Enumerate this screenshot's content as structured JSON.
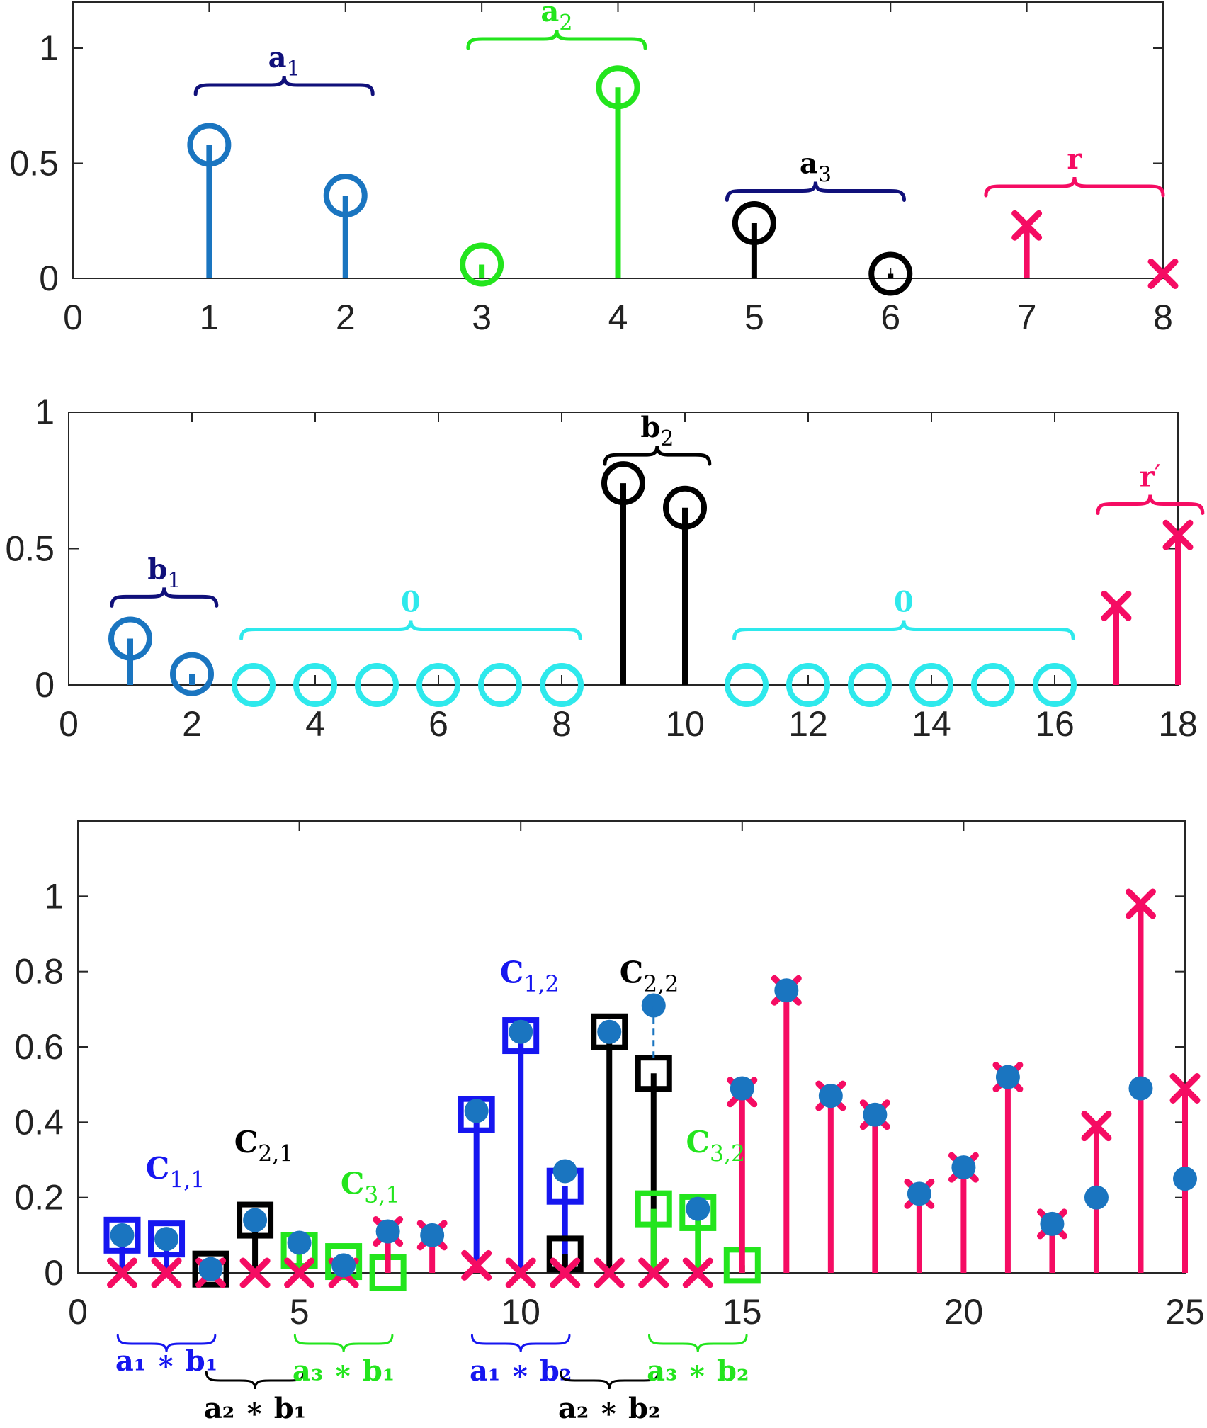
{
  "colors": {
    "blue": "#1a75c0",
    "navy": "#10107a",
    "green": "#23e51d",
    "black": "#000000",
    "magenta": "#f50c63",
    "cyan": "#2ee9ec",
    "brightblue": "#1616f0",
    "axis": "#262626",
    "tick": "#222222"
  },
  "chart_data": [
    {
      "type": "stem",
      "xlim": [
        0,
        8
      ],
      "ylim": [
        0,
        1.2
      ],
      "xticks": [
        "0",
        "1",
        "2",
        "3",
        "4",
        "5",
        "6",
        "7",
        "8"
      ],
      "yticks": [
        "0",
        "0.5",
        "1"
      ],
      "series": [
        {
          "x": [
            1,
            2
          ],
          "y": [
            0.58,
            0.36
          ],
          "marker": "circle",
          "color": "blue"
        },
        {
          "x": [
            3,
            4
          ],
          "y": [
            0.06,
            0.83
          ],
          "marker": "circle",
          "color": "green"
        },
        {
          "x": [
            5,
            6
          ],
          "y": [
            0.24,
            0.02
          ],
          "marker": "circle",
          "color": "black"
        },
        {
          "x": [
            7,
            8
          ],
          "y": [
            0.23,
            0.02
          ],
          "marker": "x",
          "color": "magenta"
        }
      ],
      "braces": [
        {
          "x": [
            0.9,
            2.2
          ],
          "y": 0.8,
          "text": "a",
          "sub": "1",
          "color": "navy"
        },
        {
          "x": [
            2.9,
            4.2
          ],
          "y": 1.0,
          "text": "a",
          "sub": "2",
          "color": "green"
        },
        {
          "x": [
            4.8,
            6.1
          ],
          "y": 0.34,
          "text": "a",
          "sub": "3",
          "color": "navy",
          "textcolor": "black"
        },
        {
          "x": [
            6.7,
            8.0
          ],
          "y": 0.36,
          "text": "r",
          "sub": "",
          "color": "magenta"
        }
      ]
    },
    {
      "type": "stem",
      "xlim": [
        0,
        18
      ],
      "ylim": [
        0,
        1
      ],
      "xticks": [
        "0",
        "2",
        "4",
        "6",
        "8",
        "10",
        "12",
        "14",
        "16",
        "18"
      ],
      "yticks": [
        "0",
        "0.5",
        "1"
      ],
      "series": [
        {
          "x": [
            1,
            2
          ],
          "y": [
            0.17,
            0.04
          ],
          "marker": "circle",
          "color": "blue"
        },
        {
          "x": [
            3,
            4,
            5,
            6,
            7,
            8
          ],
          "y": [
            0,
            0,
            0,
            0,
            0,
            0
          ],
          "marker": "circle",
          "color": "cyan"
        },
        {
          "x": [
            9,
            10
          ],
          "y": [
            0.74,
            0.65
          ],
          "marker": "circle",
          "color": "black"
        },
        {
          "x": [
            11,
            12,
            13,
            14,
            15,
            16
          ],
          "y": [
            0,
            0,
            0,
            0,
            0,
            0
          ],
          "marker": "circle",
          "color": "cyan"
        },
        {
          "x": [
            17,
            18
          ],
          "y": [
            0.29,
            0.55
          ],
          "marker": "x",
          "color": "magenta"
        }
      ],
      "braces": [
        {
          "x": [
            0.7,
            2.4
          ],
          "y": 0.29,
          "text": "b",
          "sub": "1",
          "color": "navy"
        },
        {
          "x": [
            2.8,
            8.3
          ],
          "y": 0.17,
          "text": "0",
          "sub": "",
          "color": "cyan"
        },
        {
          "x": [
            8.7,
            10.4
          ],
          "y": 0.81,
          "text": "b",
          "sub": "2",
          "color": "black"
        },
        {
          "x": [
            10.8,
            16.3
          ],
          "y": 0.17,
          "text": "0",
          "sub": "",
          "color": "cyan"
        },
        {
          "x": [
            16.7,
            18.4
          ],
          "y": 0.63,
          "text": "r",
          "sub": "′",
          "color": "magenta"
        }
      ]
    },
    {
      "type": "stem",
      "xlim": [
        0,
        25
      ],
      "ylim": [
        0,
        1.2
      ],
      "xticks": [
        "0",
        "5",
        "10",
        "15",
        "20",
        "25"
      ],
      "yticks": [
        "0",
        "0.2",
        "0.4",
        "0.6",
        "0.8",
        "1"
      ],
      "dots": {
        "x": [
          1,
          2,
          3,
          4,
          5,
          6,
          7,
          8,
          9,
          10,
          11,
          12,
          13,
          14,
          15,
          16,
          17,
          18,
          19,
          20,
          21,
          22,
          23,
          24,
          25
        ],
        "y": [
          0.1,
          0.09,
          0.01,
          0.14,
          0.08,
          0.02,
          0.11,
          0.1,
          0.43,
          0.64,
          0.27,
          0.64,
          0.71,
          0.17,
          0.49,
          0.75,
          0.47,
          0.42,
          0.21,
          0.28,
          0.52,
          0.13,
          0.2,
          0.49,
          0.25
        ],
        "color": "blue"
      },
      "dashed": {
        "x": 13,
        "y": [
          0.53,
          0.71
        ],
        "color": "blue"
      },
      "series": [
        {
          "x": [
            1,
            2,
            9,
            10,
            11
          ],
          "y": [
            0.1,
            0.09,
            0.42,
            0.63,
            0.23
          ],
          "marker": "square",
          "color": "brightblue"
        },
        {
          "x": [
            3,
            4,
            11,
            12,
            13
          ],
          "y": [
            0.01,
            0.14,
            0.05,
            0.64,
            0.53
          ],
          "marker": "square",
          "color": "black"
        },
        {
          "x": [
            5,
            6,
            7,
            13,
            14,
            15
          ],
          "y": [
            0.06,
            0.03,
            0.0,
            0.17,
            0.16,
            0.02
          ],
          "marker": "square",
          "color": "green"
        },
        {
          "x": [
            1,
            2,
            3,
            4,
            5,
            6,
            7,
            8,
            9,
            10,
            11,
            12,
            13,
            14,
            15,
            16,
            17,
            18,
            19,
            20,
            21,
            22,
            23,
            24,
            25
          ],
          "y": [
            0,
            0,
            0,
            0,
            0,
            0,
            0.11,
            0.1,
            0.02,
            0,
            0,
            0,
            0,
            0,
            0.48,
            0.75,
            0.47,
            0.42,
            0.21,
            0.28,
            0.52,
            0.13,
            0.39,
            0.98,
            0.49
          ],
          "marker": "x",
          "color": "magenta"
        }
      ],
      "labels": [
        {
          "x": 2.2,
          "y": 0.25,
          "text": "C",
          "sub": "1,1",
          "color": "brightblue"
        },
        {
          "x": 4.2,
          "y": 0.32,
          "text": "C",
          "sub": "2,1",
          "color": "black"
        },
        {
          "x": 6.6,
          "y": 0.21,
          "text": "C",
          "sub": "3,1",
          "color": "green"
        },
        {
          "x": 10.2,
          "y": 0.77,
          "text": "C",
          "sub": "1,2",
          "color": "brightblue"
        },
        {
          "x": 12.9,
          "y": 0.77,
          "text": "C",
          "sub": "2,2",
          "color": "black"
        },
        {
          "x": 14.4,
          "y": 0.32,
          "text": "C",
          "sub": "3,2",
          "color": "green"
        }
      ],
      "braces_below": [
        {
          "x": [
            0.9,
            3.1
          ],
          "row": 0,
          "text": "a₁ ∗ b₁",
          "color": "brightblue"
        },
        {
          "x": [
            2.9,
            5.1
          ],
          "row": 1,
          "text": "a₂ ∗ b₁",
          "color": "black"
        },
        {
          "x": [
            4.9,
            7.1
          ],
          "row": 0,
          "text": "a₃ ∗ b₁",
          "color": "green",
          "textrow": 1
        },
        {
          "x": [
            8.9,
            11.1
          ],
          "row": 0,
          "text": "a₁ ∗ b₂",
          "color": "brightblue",
          "textrow": 1
        },
        {
          "x": [
            10.9,
            13.1
          ],
          "row": 1,
          "text": "a₂ ∗ b₂",
          "color": "black"
        },
        {
          "x": [
            12.9,
            15.1
          ],
          "row": 0,
          "text": "a₃ ∗ b₂",
          "color": "green",
          "textrow": 1
        }
      ]
    }
  ]
}
